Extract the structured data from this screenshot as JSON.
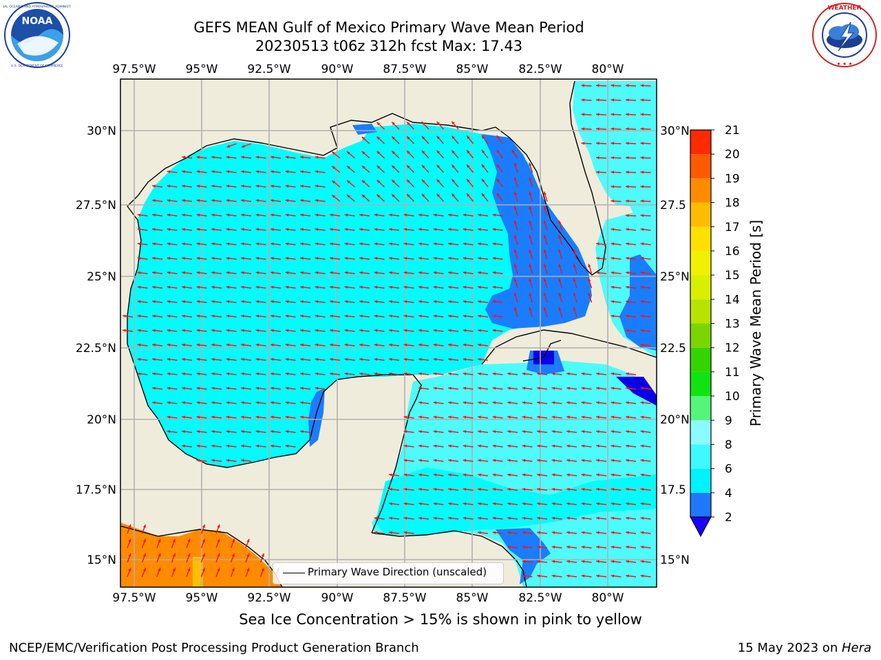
{
  "title": {
    "line1": "GEFS MEAN Gulf of Mexico Primary Wave Mean Period",
    "line2": "20230513 t06z 312h fcst   Max: 17.43"
  },
  "logos": {
    "left": "noara-logo",
    "right": "nws-logo",
    "left_text": "NATIONAL OCEANIC AND ATMOSPHERIC ADMINISTRATION · U.S. DEPARTMENT OF COMMERCE · NOAA",
    "right_text": "NATIONAL WEATHER SERVICE"
  },
  "axes": {
    "lon_labels": [
      "97.5°W",
      "95°W",
      "92.5°W",
      "90°W",
      "87.5°W",
      "85°W",
      "82.5°W",
      "80°W"
    ],
    "lat_labels_left": [
      "30°N",
      "27.5°N",
      "25°N",
      "22.5°N",
      "20°N",
      "17.5°N",
      "15°N"
    ],
    "lat_labels_right": [
      "30°N",
      "27.5",
      "25°N",
      "22.5",
      "20°N",
      "17.5",
      "15°N"
    ]
  },
  "legend": {
    "label": "Primary Wave Direction (unscaled)"
  },
  "colorbar": {
    "label": "Primary Wave Mean Period [s]",
    "ticks": [
      "2",
      "4",
      "6",
      "8",
      "9",
      "10",
      "11",
      "12",
      "13",
      "14",
      "15",
      "16",
      "17",
      "18",
      "19",
      "20",
      "21"
    ],
    "colors": [
      "#1f78ff",
      "#00f2ff",
      "#3dfaff",
      "#8afcff",
      "#55f57a",
      "#10e410",
      "#33d400",
      "#7ad600",
      "#b8e300",
      "#d8f000",
      "#f0f000",
      "#ffe000",
      "#ffbc00",
      "#ff8c00",
      "#ff5a00",
      "#ff2a00",
      "#ff0000"
    ],
    "extend_color": "#1a00ff"
  },
  "map_colors": {
    "land": "#efecdc",
    "water_4_6": "#00fcfc",
    "water_6_8": "#4dfbfb",
    "water_2_4": "#1a7dff",
    "water_lt2": "#0a00e6",
    "ice_17": "#ff8c00",
    "ice_16": "#ffbf00",
    "arrow": "#ff1010"
  },
  "footer": {
    "note": "Sea Ice Concentration > 15% is shown in pink to yellow",
    "left": "NCEP/EMC/Verification Post Processing Product Generation Branch",
    "right_date": "15 May 2023 on ",
    "right_host": "Hera"
  }
}
